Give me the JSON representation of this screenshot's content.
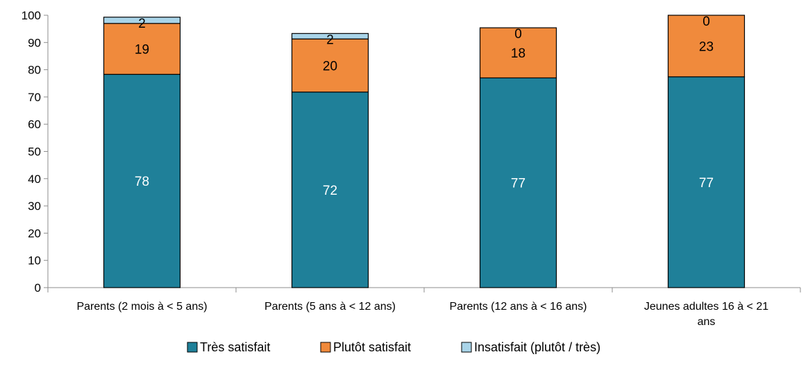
{
  "chart_data": {
    "type": "bar",
    "stacked": true,
    "title": "",
    "xlabel": "",
    "ylabel": "",
    "ylim": [
      0,
      100
    ],
    "yticks": [
      0,
      10,
      20,
      30,
      40,
      50,
      60,
      70,
      80,
      90,
      100
    ],
    "grid": false,
    "legend_position": "bottom",
    "categories": [
      [
        "Parents (2 mois à  < 5 ans)"
      ],
      [
        "Parents (5 ans à < 12 ans)"
      ],
      [
        "Parents (12 ans à < 16 ans)"
      ],
      [
        "Jeunes adultes 16 à < 21",
        "ans"
      ]
    ],
    "series": [
      {
        "name": "Très satisfait",
        "color": "#1f8099",
        "label_color": "#ffffff",
        "values": [
          78.3,
          71.8,
          77.0,
          77.4
        ],
        "labels": [
          "78",
          "72",
          "77",
          "77"
        ]
      },
      {
        "name": "Plutôt satisfait",
        "color": "#f08a3c",
        "label_color": "#000000",
        "values": [
          18.7,
          19.5,
          18.4,
          22.6
        ],
        "labels": [
          "19",
          "20",
          "18",
          "23"
        ]
      },
      {
        "name": "Insatisfait (plutôt / très)",
        "color": "#a9d4e8",
        "label_color": "#000000",
        "values": [
          2.3,
          2.0,
          0.0,
          0.0
        ],
        "labels": [
          "2",
          "2",
          "0",
          "0"
        ]
      }
    ]
  }
}
